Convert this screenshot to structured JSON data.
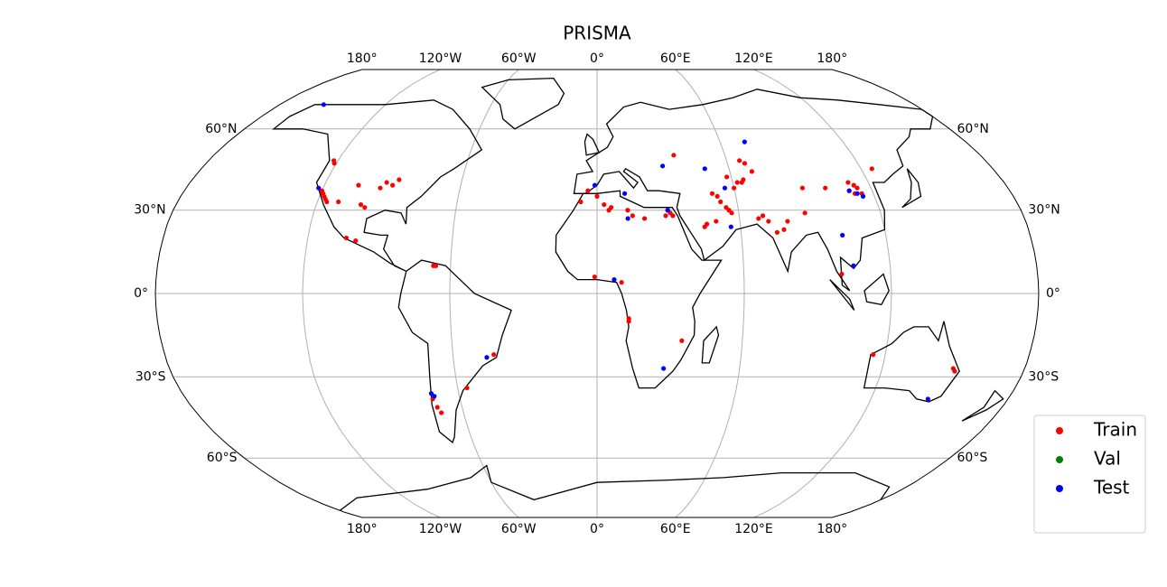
{
  "chart_data": {
    "type": "scatter",
    "title": "PRISMA",
    "projection": "robinson",
    "xlim": [
      -180,
      180
    ],
    "ylim": [
      -90,
      90
    ],
    "xticks": [
      {
        "value": -180,
        "label": "180°"
      },
      {
        "value": -120,
        "label": "120°W"
      },
      {
        "value": -60,
        "label": "60°W"
      },
      {
        "value": 0,
        "label": "0°"
      },
      {
        "value": 60,
        "label": "60°E"
      },
      {
        "value": 120,
        "label": "120°E"
      },
      {
        "value": 180,
        "label": "180°"
      }
    ],
    "yticks": [
      {
        "value": -60,
        "label": "60°S"
      },
      {
        "value": -30,
        "label": "30°S"
      },
      {
        "value": 0,
        "label": "0°"
      },
      {
        "value": 30,
        "label": "30°N"
      },
      {
        "value": 60,
        "label": "60°N"
      }
    ],
    "grid": true,
    "legend": "lower right",
    "series": [
      {
        "name": "Train",
        "color": "#ff0000",
        "x": [
          -119,
          -118,
          -117,
          -120,
          -116,
          -121,
          -122,
          -111,
          -99,
          -101,
          -105,
          -95,
          -93,
          -90,
          -88,
          -104,
          -100,
          -67,
          -66,
          -43,
          -71,
          -70,
          -72,
          -56,
          -4,
          -7,
          3,
          5,
          6,
          0,
          13,
          15,
          20,
          30,
          31,
          32,
          29,
          36,
          -1,
          10,
          13,
          13,
          35,
          45,
          46,
          50,
          53,
          55,
          56,
          52,
          57,
          50,
          60,
          62,
          58,
          66,
          68,
          70,
          64,
          65,
          68,
          70,
          72,
          75,
          78,
          80,
          100,
          110,
          112,
          114,
          113,
          115,
          111,
          125,
          90,
          88,
          100,
          115,
          150,
          151
        ],
        "values": [
          36,
          35,
          34,
          37,
          33,
          47,
          48,
          33,
          31,
          32,
          39,
          38,
          40,
          39,
          41,
          20,
          19,
          10,
          10,
          -22,
          -41,
          -43,
          -38,
          -34,
          37,
          33,
          32,
          30,
          31,
          35,
          30,
          28,
          27,
          30,
          29,
          28,
          28,
          50,
          6,
          4,
          -9,
          -10,
          -17,
          24,
          25,
          26,
          33,
          31,
          30,
          35,
          29,
          36,
          38,
          40,
          42,
          48,
          47,
          44,
          40,
          41,
          27,
          28,
          26,
          22,
          23,
          26,
          38,
          37,
          36,
          38,
          39,
          36,
          40,
          45,
          38,
          29,
          7,
          -22,
          -27,
          -28
        ]
      },
      {
        "name": "Val",
        "color": "#008000",
        "x": [],
        "values": []
      },
      {
        "name": "Test",
        "color": "#0000ff",
        "x": [
          -155,
          -122,
          -46,
          -72,
          -71,
          7,
          -1,
          12,
          13,
          30,
          30,
          72,
          56,
          56,
          49,
          28,
          110,
          113,
          115,
          102,
          145,
          105
        ],
        "values": [
          70,
          38,
          -23,
          -36,
          -37,
          5,
          39,
          36,
          27,
          30,
          46,
          55,
          38,
          24,
          45,
          -27,
          37,
          36,
          35,
          21,
          -38,
          10
        ]
      }
    ]
  }
}
